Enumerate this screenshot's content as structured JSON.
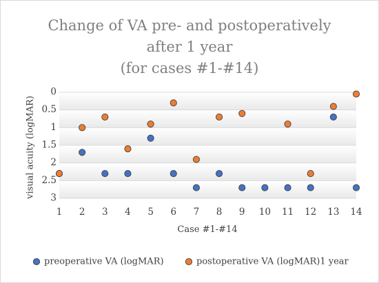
{
  "chart_data": {
    "type": "scatter",
    "title_lines": [
      "Change of VA pre- and postoperatively",
      "after 1 year",
      "(for cases #1-#14)"
    ],
    "xlabel": "Case #1-#14",
    "ylabel": "visual acuity (logMAR)",
    "x": [
      1,
      2,
      3,
      4,
      5,
      6,
      7,
      8,
      9,
      10,
      11,
      12,
      13,
      14
    ],
    "x_ticks": [
      "1",
      "2",
      "3",
      "4",
      "5",
      "6",
      "7",
      "8",
      "9",
      "10",
      "11",
      "12",
      "13",
      "14"
    ],
    "xlim": [
      1,
      14
    ],
    "ylim": [
      0,
      3
    ],
    "y_inverted": true,
    "y_ticks": [
      "0",
      "0.5",
      "1",
      "1.5",
      "2",
      "2.5",
      "3"
    ],
    "y_tick_values": [
      0,
      0.5,
      1,
      1.5,
      2,
      2.5,
      3
    ],
    "grid": true,
    "legend_position": "bottom",
    "series": [
      {
        "name": "preoperative VA (logMAR)",
        "color": "#4472c4",
        "values": [
          2.3,
          1.7,
          2.3,
          2.3,
          1.3,
          2.3,
          2.7,
          2.3,
          2.7,
          2.7,
          2.7,
          2.7,
          0.7,
          2.7
        ]
      },
      {
        "name": "postoperative VA (logMAR)1 year",
        "color": "#ed7d31",
        "values": [
          2.3,
          1.0,
          0.7,
          1.6,
          0.9,
          0.3,
          1.9,
          0.7,
          0.6,
          null,
          0.9,
          2.3,
          0.4,
          0.05
        ]
      }
    ]
  }
}
